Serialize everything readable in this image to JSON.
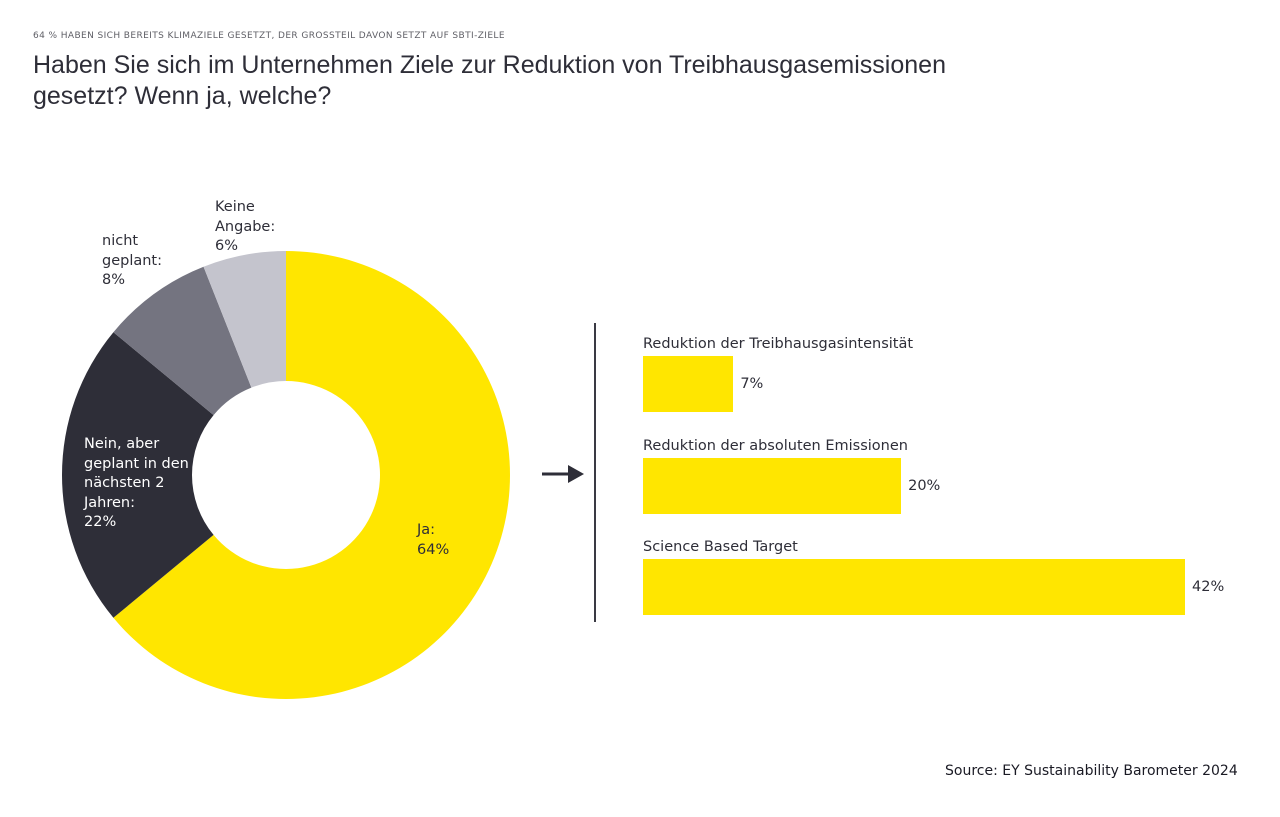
{
  "header": {
    "kicker": "64 % haben sich bereits Klimaziele gesetzt, der Großteil davon setzt auf SBTi-Ziele",
    "title": "Haben Sie sich im Unternehmen Ziele zur Reduktion von Treibhausgasemissionen gesetzt? Wenn ja, welche?"
  },
  "chart_data": [
    {
      "type": "pie",
      "variant": "donut",
      "title": "",
      "slices": [
        {
          "name": "Ja",
          "label": "Ja:",
          "value": 64,
          "value_label": "64%",
          "color": "#ffe600"
        },
        {
          "name": "Nein, aber geplant in den nächsten 2 Jahren",
          "label": "Nein, aber geplant in den nächsten 2 Jahren:",
          "value": 22,
          "value_label": "22%",
          "color": "#2e2e38"
        },
        {
          "name": "nicht geplant",
          "label": "nicht geplant:",
          "value": 8,
          "value_label": "8%",
          "color": "#747480"
        },
        {
          "name": "Keine Angabe",
          "label": "Keine Angabe:",
          "value": 6,
          "value_label": "6%",
          "color": "#c4c4cd"
        }
      ],
      "start": "12 o'clock",
      "direction": "clockwise"
    },
    {
      "type": "bar",
      "orientation": "horizontal",
      "title": "",
      "categories": [
        "Reduktion der Treibhausgasintensität",
        "Reduktion der absoluten Emissionen",
        "Science Based Target"
      ],
      "values": [
        7,
        20,
        42
      ],
      "value_labels": [
        "7%",
        "20%",
        "42%"
      ],
      "unit": "%",
      "color": "#ffe600",
      "xlim": [
        0,
        42
      ],
      "grid": false
    }
  ],
  "connector": {
    "icon": "arrow-right-icon"
  },
  "footer": {
    "source": "Source: EY Sustainability Barometer 2024"
  }
}
